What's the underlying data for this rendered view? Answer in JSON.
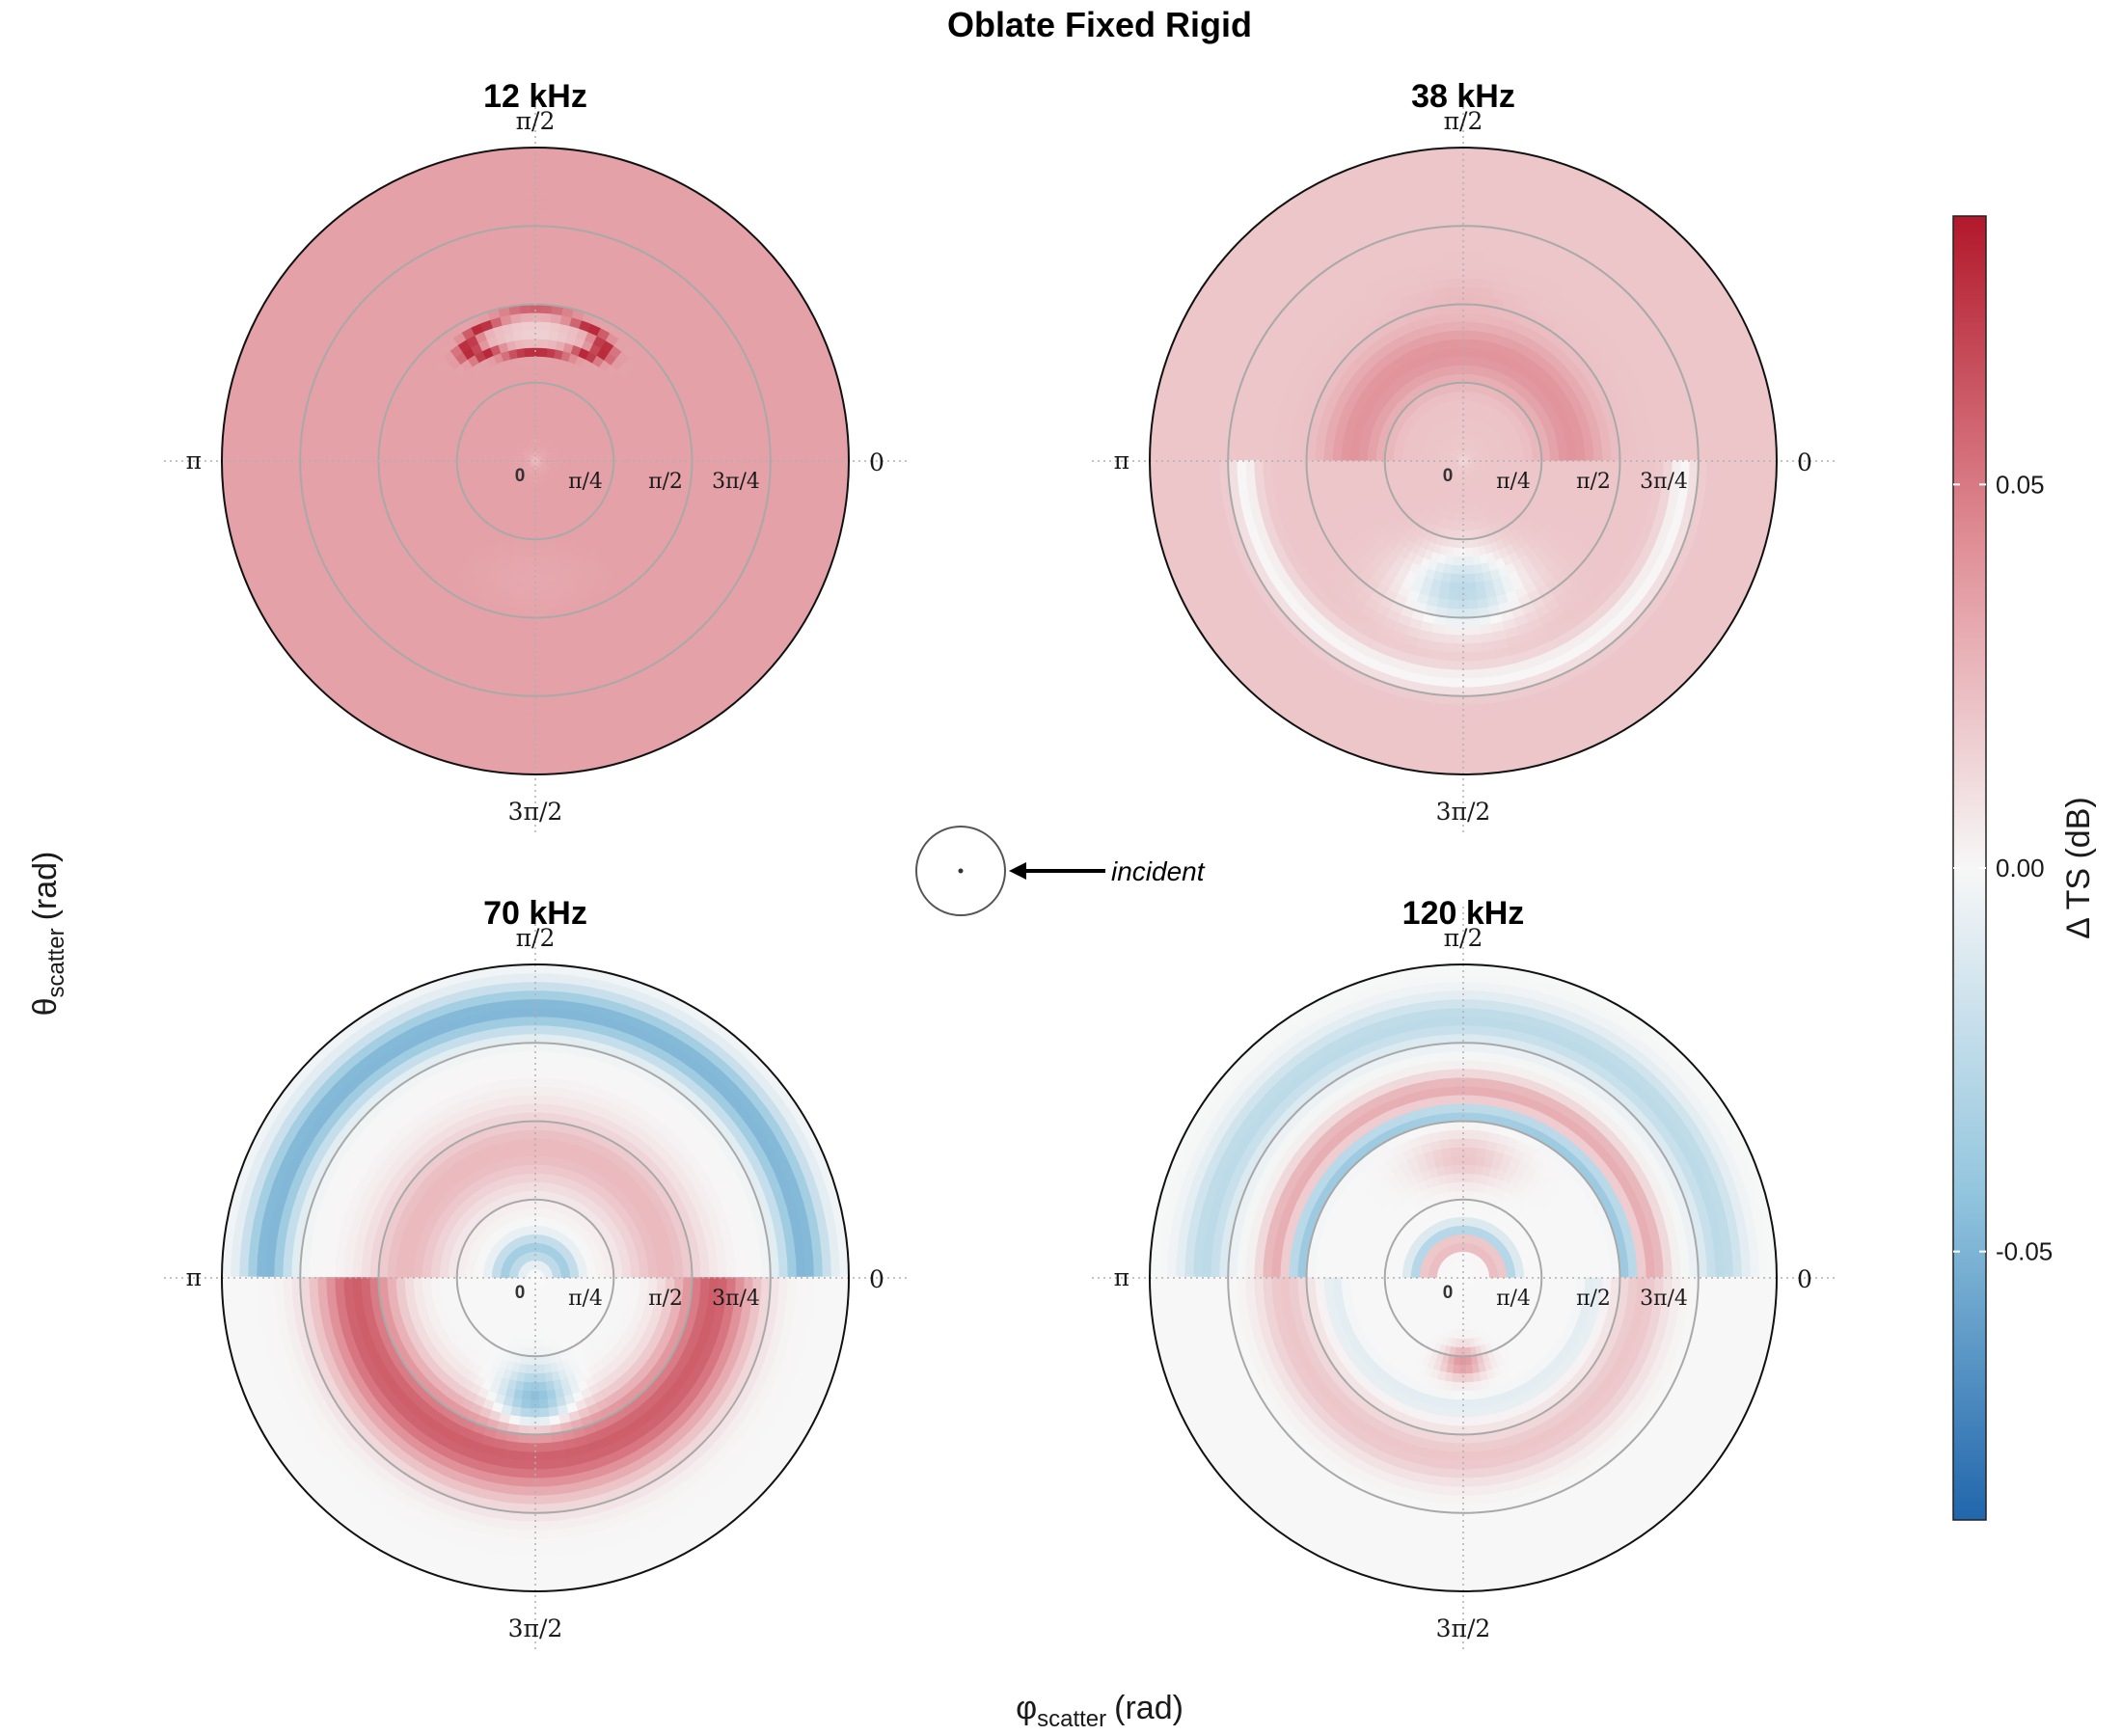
{
  "title": "Oblate Fixed Rigid",
  "x_axis": {
    "symbol": "φ",
    "subscript": "scatter",
    "unit": "(rad)"
  },
  "y_axis": {
    "symbol": "θ",
    "subscript": "scatter",
    "unit": "(rad)"
  },
  "annotation": "incident",
  "phi_ticks": [
    "π/2",
    "π",
    "0",
    "3π/2"
  ],
  "theta_ticks": [
    "0",
    "π/4",
    "π/2",
    "3π/4"
  ],
  "colorbar": {
    "title": "Δ TS (dB)",
    "ticks": [
      "0.05",
      "0.00",
      "-0.05"
    ],
    "tick_values": [
      0.05,
      0.0,
      -0.05
    ],
    "range": [
      -0.085,
      0.085
    ],
    "colors": {
      "low": "#2166ac",
      "mid": "#f7f7f7",
      "high": "#b2182b"
    }
  },
  "chart_data": [
    {
      "type": "heatmap",
      "projection": "polar",
      "title": "12 kHz",
      "features": [
        {
          "kind": "background",
          "value": 0.035
        },
        {
          "kind": "blob",
          "phi": 1.5708,
          "theta": 1.3,
          "spread_phi": 0.55,
          "spread_theta": 0.2,
          "value": 0.015
        },
        {
          "kind": "ring",
          "phi": 1.5708,
          "theta": 1.3,
          "spread_phi": 0.55,
          "spread_theta": 0.2,
          "value": 0.08
        },
        {
          "kind": "blob",
          "phi": 4.7124,
          "theta": 1.2,
          "spread_phi": 0.6,
          "spread_theta": 0.4,
          "value": 0.032
        }
      ]
    },
    {
      "type": "heatmap",
      "projection": "polar",
      "title": "38 kHz",
      "features": [
        {
          "kind": "background",
          "value": 0.02
        },
        {
          "kind": "band",
          "theta": 1.1,
          "width": 0.7,
          "value": 0.04,
          "phi_range": [
            0,
            3.1416
          ]
        },
        {
          "kind": "blob",
          "phi": 1.5708,
          "theta": 1.6,
          "spread_phi": 0.4,
          "spread_theta": 0.25,
          "value": 0.025
        },
        {
          "kind": "blob",
          "phi": 4.7124,
          "theta": 1.3,
          "spread_phi": 0.55,
          "spread_theta": 0.5,
          "value": -0.025
        },
        {
          "kind": "band",
          "theta": 2.2,
          "width": 0.3,
          "value": 0.0,
          "phi_range": [
            3.1416,
            6.2832
          ]
        }
      ]
    },
    {
      "type": "heatmap",
      "projection": "polar",
      "title": "70 kHz",
      "features": [
        {
          "kind": "background",
          "value": 0.0
        },
        {
          "kind": "band",
          "theta": 2.7,
          "width": 0.5,
          "value": -0.05,
          "phi_range": [
            0,
            3.1416
          ]
        },
        {
          "kind": "band",
          "theta": 1.3,
          "width": 0.9,
          "value": 0.025,
          "phi_range": [
            0,
            3.1416
          ]
        },
        {
          "kind": "band",
          "theta": 1.8,
          "width": 0.9,
          "value": 0.06,
          "phi_range": [
            3.1416,
            6.2832
          ]
        },
        {
          "kind": "blob",
          "phi": 4.7124,
          "theta": 1.2,
          "spread_phi": 0.35,
          "spread_theta": 0.35,
          "value": -0.045
        },
        {
          "kind": "band",
          "theta": 0.3,
          "width": 0.3,
          "value": -0.035,
          "phi_range": [
            0,
            3.1416
          ]
        }
      ]
    },
    {
      "type": "heatmap",
      "projection": "polar",
      "title": "120 kHz",
      "features": [
        {
          "kind": "background",
          "value": 0.0
        },
        {
          "kind": "band",
          "theta": 2.6,
          "width": 0.5,
          "value": -0.025,
          "phi_range": [
            0,
            3.1416
          ]
        },
        {
          "kind": "band",
          "theta": 1.9,
          "width": 0.35,
          "value": 0.03,
          "phi_range": [
            0,
            3.1416
          ]
        },
        {
          "kind": "band",
          "theta": 1.65,
          "width": 0.15,
          "value": -0.05,
          "phi_range": [
            0,
            3.1416
          ]
        },
        {
          "kind": "blob",
          "phi": 1.5708,
          "theta": 1.2,
          "spread_phi": 0.5,
          "spread_theta": 0.3,
          "value": 0.02
        },
        {
          "kind": "band",
          "theta": 0.35,
          "width": 0.15,
          "value": 0.035,
          "phi_range": [
            0,
            3.1416
          ]
        },
        {
          "kind": "band",
          "theta": 0.5,
          "width": 0.15,
          "value": -0.03,
          "phi_range": [
            0,
            3.1416
          ]
        },
        {
          "kind": "band",
          "theta": 1.8,
          "width": 0.6,
          "value": 0.02,
          "phi_range": [
            3.1416,
            6.2832
          ]
        },
        {
          "kind": "band",
          "theta": 1.3,
          "width": 0.2,
          "value": -0.01,
          "phi_range": [
            3.1416,
            6.2832
          ]
        },
        {
          "kind": "blob",
          "phi": 4.7124,
          "theta": 0.85,
          "spread_phi": 0.3,
          "spread_theta": 0.2,
          "value": 0.04
        }
      ]
    }
  ]
}
